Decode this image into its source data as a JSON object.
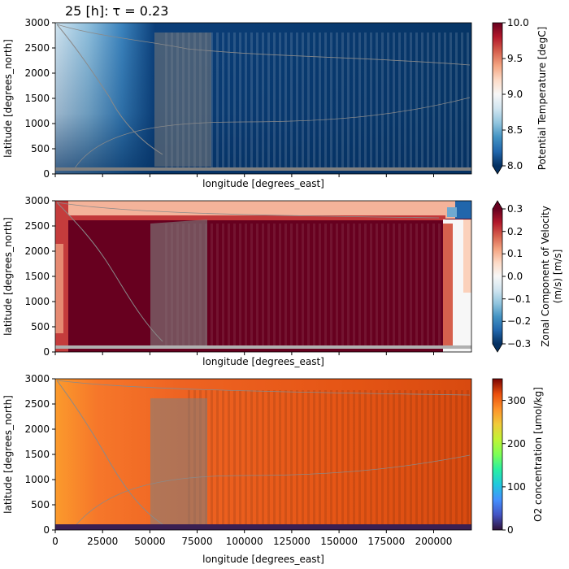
{
  "figure": {
    "title": "25 [h]: τ = 0.23"
  },
  "chart_data": [
    {
      "type": "heatmap",
      "xlabel": "longitude [degrees_east]",
      "ylabel": "latitude [degrees_north]",
      "xlim": [
        0,
        220000
      ],
      "ylim": [
        0,
        3000
      ],
      "x_ticks": [
        0,
        25000,
        50000,
        75000,
        100000,
        125000,
        150000,
        175000,
        200000
      ],
      "x_tick_labels": [
        "",
        "",
        "",
        "",
        "",
        "",
        "",
        "",
        ""
      ],
      "y_ticks": [
        0,
        500,
        1000,
        1500,
        2000,
        2500,
        3000
      ],
      "y_tick_labels": [
        "0",
        "500",
        "1000",
        "1500",
        "2000",
        "2500",
        "3000"
      ],
      "colorbar": {
        "label": "Potential Temperature [degC]",
        "min": 8.0,
        "max": 10.0,
        "ticks": [
          8.0,
          8.5,
          9.0,
          9.5,
          10.0
        ],
        "tick_labels": [
          "8.0",
          "8.5",
          "9.0",
          "9.5",
          "10.0"
        ],
        "colormap": "RdBu_r",
        "extend": "min"
      }
    },
    {
      "type": "heatmap",
      "xlabel": "longitude [degrees_east]",
      "ylabel": "latitude [degrees_north]",
      "xlim": [
        0,
        220000
      ],
      "ylim": [
        0,
        3000
      ],
      "x_ticks": [
        0,
        25000,
        50000,
        75000,
        100000,
        125000,
        150000,
        175000,
        200000
      ],
      "x_tick_labels": [
        "",
        "",
        "",
        "",
        "",
        "",
        "",
        "",
        ""
      ],
      "y_ticks": [
        0,
        500,
        1000,
        1500,
        2000,
        2500,
        3000
      ],
      "y_tick_labels": [
        "0",
        "500",
        "1000",
        "1500",
        "2000",
        "2500",
        "3000"
      ],
      "colorbar": {
        "label": "Zonal Component of Velocity (m/s) [m/s]",
        "label_lines": [
          "Zonal Component of Velocity",
          "(m/s) [m/s]"
        ],
        "min": -0.3,
        "max": 0.3,
        "ticks": [
          -0.3,
          -0.2,
          -0.1,
          0.0,
          0.1,
          0.2,
          0.3
        ],
        "tick_labels": [
          "−0.3",
          "−0.2",
          "−0.1",
          "0.0",
          "0.1",
          "0.2",
          "0.3"
        ],
        "colormap": "RdBu_r",
        "extend": "both"
      }
    },
    {
      "type": "heatmap",
      "xlabel": "longitude [degrees_east]",
      "ylabel": "latitude [degrees_north]",
      "xlim": [
        0,
        220000
      ],
      "ylim": [
        0,
        3000
      ],
      "x_ticks": [
        0,
        25000,
        50000,
        75000,
        100000,
        125000,
        150000,
        175000,
        200000
      ],
      "x_tick_labels": [
        "0",
        "25000",
        "50000",
        "75000",
        "100000",
        "125000",
        "150000",
        "175000",
        "200000"
      ],
      "y_ticks": [
        0,
        500,
        1000,
        1500,
        2000,
        2500,
        3000
      ],
      "y_tick_labels": [
        "0",
        "500",
        "1000",
        "1500",
        "2000",
        "2500",
        "3000"
      ],
      "colorbar": {
        "label": "O2 concentration [umol/kg]",
        "min": 0,
        "max": 350,
        "ticks": [
          0,
          100,
          200,
          300
        ],
        "tick_labels": [
          "0",
          "100",
          "200",
          "300"
        ],
        "colormap": "turbo",
        "extend": "neither"
      }
    }
  ]
}
